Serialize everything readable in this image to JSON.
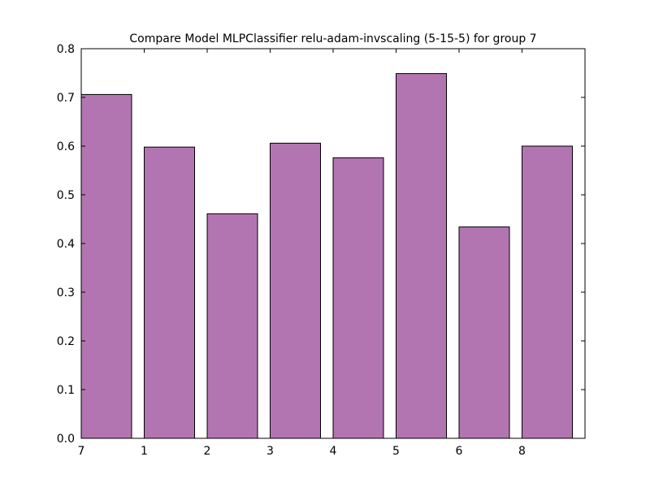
{
  "chart_data": {
    "type": "bar",
    "title": "Compare Model MLPClassifier relu-adam-invscaling (5-15-5) for group 7",
    "xlabel": "",
    "ylabel": "",
    "categories": [
      "7",
      "1",
      "2",
      "3",
      "4",
      "5",
      "6",
      "8"
    ],
    "values": [
      0.706,
      0.598,
      0.461,
      0.606,
      0.576,
      0.749,
      0.434,
      0.6
    ],
    "ylim": [
      0.0,
      0.8
    ],
    "yticks": [
      "0.0",
      "0.1",
      "0.2",
      "0.3",
      "0.4",
      "0.5",
      "0.6",
      "0.7",
      "0.8"
    ],
    "bar_color": "#b275b2",
    "edge_color": "#000000",
    "grid": false,
    "legend": false
  }
}
